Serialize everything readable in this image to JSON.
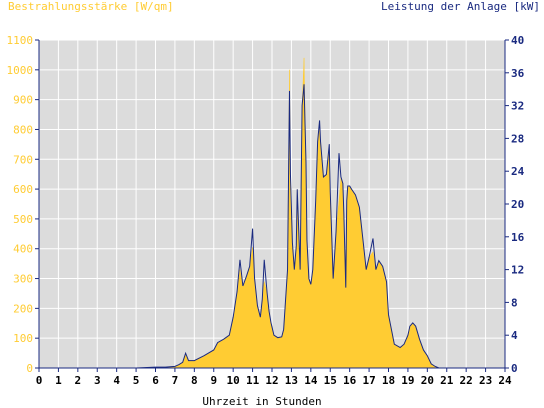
{
  "colors": {
    "irradiance": "#ffcc33",
    "power": "#1a2a80",
    "plot_bg": "#dcdcdc",
    "grid": "#ffffff",
    "axis": "#1a2a80",
    "xtext": "#000000"
  },
  "chart_data": {
    "type": "area",
    "title_left": "Bestrahlungsstärke [W/qm]",
    "title_right": "Leistung der Anlage [kW]",
    "xlabel": "Uhrzeit in Stunden",
    "xlim": [
      0,
      24
    ],
    "x_ticks": [
      0,
      1,
      2,
      3,
      4,
      5,
      6,
      7,
      8,
      9,
      10,
      11,
      12,
      13,
      14,
      15,
      16,
      17,
      18,
      19,
      20,
      21,
      22,
      23,
      24
    ],
    "y_left": {
      "lim": [
        0,
        1100
      ],
      "ticks": [
        0,
        100,
        200,
        300,
        400,
        500,
        600,
        700,
        800,
        900,
        1000,
        1100
      ]
    },
    "y_right": {
      "lim": [
        0,
        40
      ],
      "ticks": [
        0,
        4,
        8,
        12,
        16,
        20,
        24,
        28,
        32,
        36,
        40
      ]
    },
    "grid": true,
    "series": [
      {
        "name": "Bestrahlungsstärke [W/qm]",
        "axis": "left",
        "style": "filled-area",
        "x": [
          0,
          5,
          6,
          6.5,
          7,
          7.2,
          7.4,
          7.55,
          7.7,
          8,
          8.5,
          9,
          9.2,
          9.5,
          9.8,
          10,
          10.2,
          10.35,
          10.5,
          10.7,
          10.85,
          11,
          11.1,
          11.25,
          11.4,
          11.5,
          11.6,
          11.75,
          11.85,
          11.95,
          12.1,
          12.3,
          12.5,
          12.6,
          12.8,
          12.9,
          12.95,
          13.05,
          13.15,
          13.25,
          13.3,
          13.45,
          13.55,
          13.65,
          13.75,
          13.8,
          13.9,
          14,
          14.1,
          14.25,
          14.35,
          14.45,
          14.5,
          14.65,
          14.8,
          14.95,
          15,
          15.15,
          15.3,
          15.45,
          15.55,
          15.65,
          15.7,
          15.8,
          15.85,
          15.9,
          16,
          16.1,
          16.3,
          16.5,
          16.7,
          16.85,
          17,
          17.2,
          17.35,
          17.5,
          17.7,
          17.9,
          18,
          18.3,
          18.6,
          18.8,
          19,
          19.1,
          19.25,
          19.4,
          19.6,
          19.8,
          20,
          20.2,
          20.4,
          20.6,
          21,
          24
        ],
        "values": [
          0,
          0,
          2,
          3,
          5,
          10,
          20,
          50,
          25,
          25,
          40,
          60,
          85,
          95,
          110,
          170,
          255,
          330,
          275,
          310,
          340,
          405,
          300,
          210,
          170,
          230,
          290,
          250,
          190,
          150,
          110,
          103,
          105,
          130,
          330,
          1000,
          650,
          420,
          330,
          410,
          600,
          330,
          880,
          1040,
          690,
          430,
          300,
          280,
          330,
          560,
          760,
          800,
          760,
          640,
          650,
          750,
          590,
          300,
          460,
          560,
          640,
          620,
          520,
          270,
          560,
          610,
          610,
          600,
          580,
          540,
          420,
          330,
          370,
          390,
          330,
          360,
          340,
          290,
          180,
          80,
          70,
          80,
          110,
          140,
          150,
          140,
          95,
          60,
          40,
          15,
          5,
          0,
          0,
          0
        ]
      },
      {
        "name": "Leistung der Anlage [kW]",
        "axis": "right",
        "style": "line",
        "x": [
          0,
          5,
          6,
          6.5,
          7,
          7.2,
          7.4,
          7.55,
          7.7,
          8,
          8.5,
          9,
          9.2,
          9.5,
          9.8,
          10,
          10.2,
          10.35,
          10.5,
          10.7,
          10.85,
          11,
          11.1,
          11.25,
          11.4,
          11.5,
          11.6,
          11.75,
          11.85,
          11.95,
          12.1,
          12.3,
          12.5,
          12.6,
          12.8,
          12.9,
          12.95,
          13.05,
          13.15,
          13.25,
          13.3,
          13.45,
          13.55,
          13.65,
          13.75,
          13.8,
          13.9,
          14,
          14.1,
          14.25,
          14.35,
          14.45,
          14.5,
          14.65,
          14.8,
          14.95,
          15,
          15.15,
          15.3,
          15.45,
          15.55,
          15.65,
          15.7,
          15.8,
          15.85,
          15.9,
          16,
          16.1,
          16.3,
          16.5,
          16.7,
          16.85,
          17,
          17.2,
          17.35,
          17.5,
          17.7,
          17.9,
          18,
          18.3,
          18.6,
          18.8,
          19,
          19.1,
          19.25,
          19.4,
          19.6,
          19.8,
          20,
          20.2,
          20.4,
          20.6,
          21,
          24
        ],
        "values": [
          0,
          0,
          0.1,
          0.1,
          0.2,
          0.4,
          0.7,
          1.8,
          0.9,
          0.9,
          1.5,
          2.2,
          3.1,
          3.5,
          4.0,
          6.2,
          9.3,
          13.2,
          10,
          11.3,
          12.4,
          17.0,
          11,
          7.6,
          6.2,
          8.4,
          13.2,
          9.1,
          6.9,
          5.5,
          4.0,
          3.7,
          3.8,
          4.7,
          12,
          33.8,
          23.6,
          15.3,
          12,
          14.9,
          21.8,
          12,
          32,
          34.6,
          25.1,
          15.6,
          10.9,
          10.2,
          12,
          20.4,
          27.6,
          30.2,
          27.6,
          23.3,
          23.6,
          27.3,
          21.5,
          10.9,
          16.7,
          26.2,
          23.3,
          22.5,
          18.9,
          9.8,
          20.4,
          22.2,
          22.2,
          21.8,
          21.1,
          19.6,
          15.3,
          12,
          13.5,
          15.8,
          12,
          13.1,
          12.4,
          10.5,
          6.5,
          2.9,
          2.5,
          2.9,
          4.0,
          5.1,
          5.5,
          5.1,
          3.5,
          2.2,
          1.5,
          0.5,
          0.2,
          0,
          0,
          0
        ]
      }
    ]
  }
}
